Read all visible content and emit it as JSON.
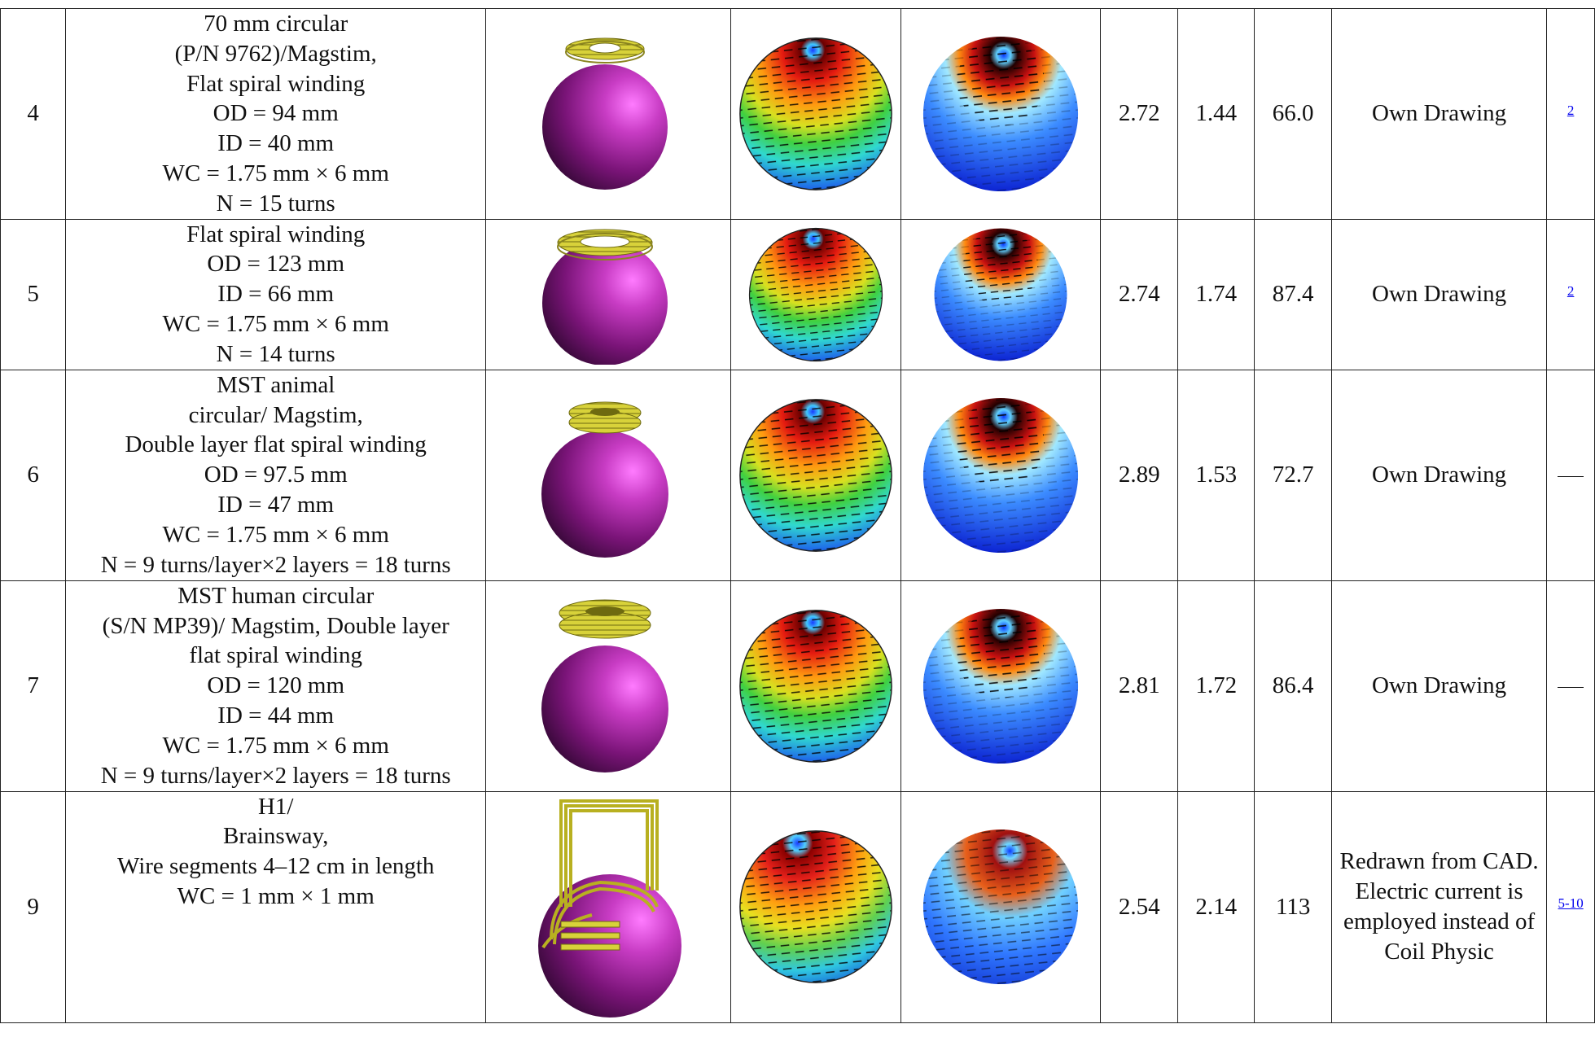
{
  "rows": [
    {
      "id": "4",
      "description": [
        "70 mm circular",
        "(P/N 9762)/Magstim,",
        "Flat spiral winding",
        "OD = 94 mm",
        "ID = 40 mm",
        "WC = 1.75 mm × 6 mm",
        "N = 15 turns"
      ],
      "coil_model": "flat-spiral",
      "v1": "2.72",
      "v2": "1.44",
      "v3": "66.0",
      "source": "Own Drawing",
      "ref": "2"
    },
    {
      "id": "5",
      "description": [
        "Flat spiral winding",
        "OD = 123 mm",
        "ID = 66 mm",
        "WC = 1.75 mm × 6 mm",
        "N = 14 turns"
      ],
      "coil_model": "flat-spiral-wide",
      "v1": "2.74",
      "v2": "1.74",
      "v3": "87.4",
      "source": "Own Drawing",
      "ref": "2"
    },
    {
      "id": "6",
      "description": [
        "MST animal",
        "circular/ Magstim,",
        "Double layer flat spiral winding",
        "OD = 97.5 mm",
        "ID = 47 mm",
        "WC = 1.75 mm × 6 mm",
        "N = 9 turns/layer×2 layers = 18 turns"
      ],
      "coil_model": "double-layer-spiral",
      "v1": "2.89",
      "v2": "1.53",
      "v3": "72.7",
      "source": "Own Drawing",
      "ref": "—"
    },
    {
      "id": "7",
      "description": [
        "MST human circular",
        "(S/N MP39)/ Magstim, Double layer",
        "flat spiral winding",
        "OD = 120 mm",
        "ID = 44 mm",
        "WC = 1.75 mm × 6 mm",
        "N = 9 turns/layer×2 layers = 18 turns"
      ],
      "coil_model": "double-layer-spiral-wide",
      "v1": "2.81",
      "v2": "1.72",
      "v3": "86.4",
      "source": "Own Drawing",
      "ref": "—"
    },
    {
      "id": "9",
      "description": [
        "H1/",
        "Brainsway,",
        "Wire segments 4–12 cm in length",
        "WC = 1 mm × 1 mm"
      ],
      "coil_model": "h1-wire-frame",
      "v1": "2.54",
      "v2": "2.14",
      "v3": "113",
      "source": "Redrawn from CAD. Electric current is employed instead of Coil Physic",
      "ref": "5-10"
    }
  ],
  "colors": {
    "sphere": "#8a1a86",
    "coil": "#d8d23a",
    "link": "#0000ee"
  }
}
